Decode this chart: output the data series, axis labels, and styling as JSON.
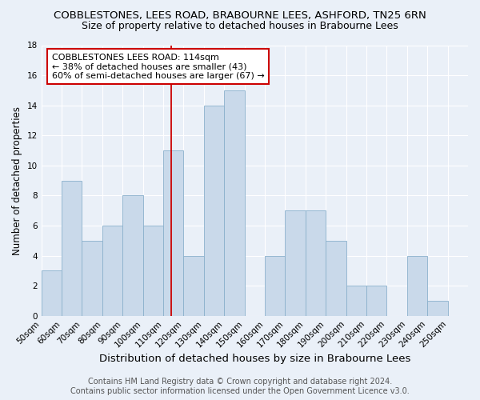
{
  "title": "COBBLESTONES, LEES ROAD, BRABOURNE LEES, ASHFORD, TN25 6RN",
  "subtitle": "Size of property relative to detached houses in Brabourne Lees",
  "xlabel": "Distribution of detached houses by size in Brabourne Lees",
  "ylabel": "Number of detached properties",
  "footer_line1": "Contains HM Land Registry data © Crown copyright and database right 2024.",
  "footer_line2": "Contains public sector information licensed under the Open Government Licence v3.0.",
  "bin_left_edges": [
    50,
    60,
    70,
    80,
    90,
    100,
    110,
    120,
    130,
    140,
    150,
    160,
    170,
    180,
    190,
    200,
    210,
    220,
    230,
    240,
    250
  ],
  "bar_heights": [
    3,
    9,
    5,
    6,
    8,
    6,
    11,
    4,
    14,
    15,
    0,
    4,
    7,
    7,
    5,
    2,
    2,
    0,
    4,
    1,
    0
  ],
  "bar_color": "#c9d9ea",
  "bar_edge_color": "#8ab0cc",
  "vline_x": 114,
  "vline_color": "#cc0000",
  "annotation_title": "COBBLESTONES LEES ROAD: 114sqm",
  "annotation_line2": "← 38% of detached houses are smaller (43)",
  "annotation_line3": "60% of semi-detached houses are larger (67) →",
  "annotation_box_facecolor": "white",
  "annotation_box_edgecolor": "#cc0000",
  "ylim": [
    0,
    18
  ],
  "yticks": [
    0,
    2,
    4,
    6,
    8,
    10,
    12,
    14,
    16,
    18
  ],
  "title_fontsize": 9.5,
  "subtitle_fontsize": 9,
  "xlabel_fontsize": 9.5,
  "ylabel_fontsize": 8.5,
  "tick_label_fontsize": 7.5,
  "annotation_fontsize": 8,
  "footer_fontsize": 7,
  "background_color": "#eaf0f8",
  "plot_bg_color": "#eaf0f8",
  "grid_color": "#ffffff"
}
